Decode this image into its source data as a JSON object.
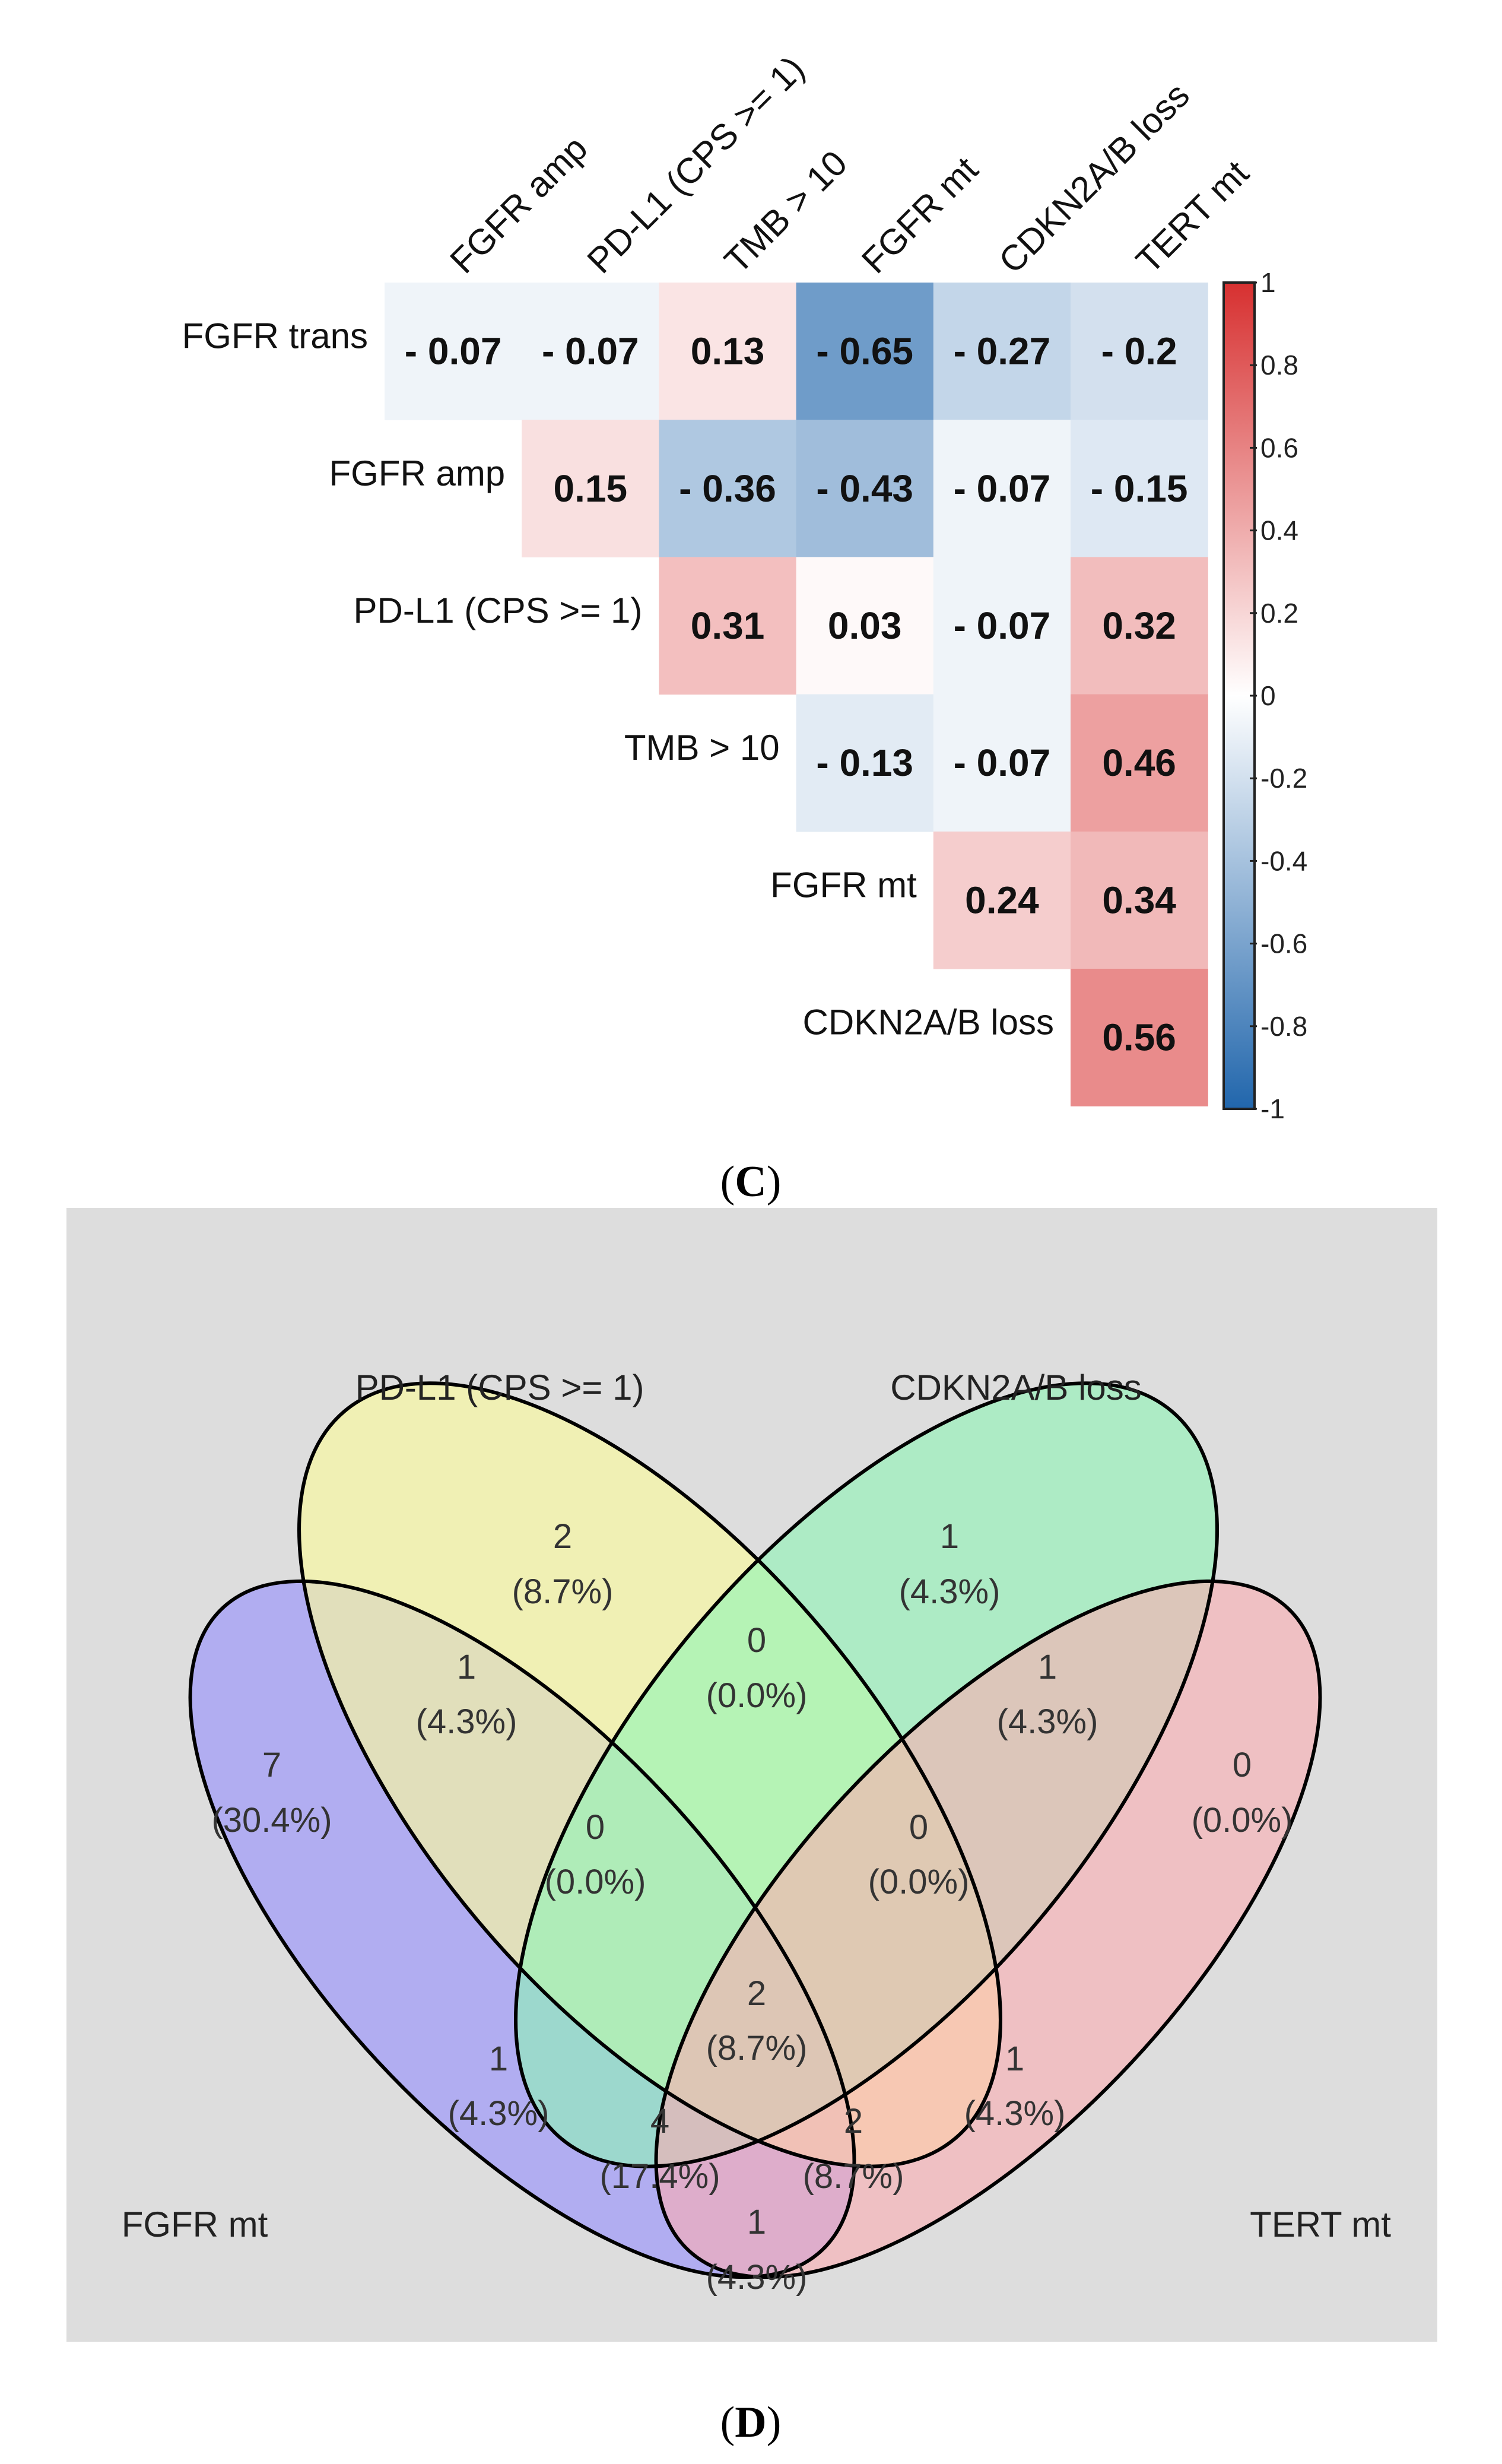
{
  "chart_data": [
    {
      "type": "heatmap",
      "panel_label": "C",
      "row_labels": [
        "FGFR trans",
        "FGFR amp",
        "PD-L1 (CPS >= 1)",
        "TMB > 10",
        "FGFR mt",
        "CDKN2A/B loss"
      ],
      "col_labels": [
        "FGFR amp",
        "PD-L1 (CPS >= 1)",
        "TMB > 10",
        "FGFR mt",
        "CDKN2A/B loss",
        "TERT mt"
      ],
      "cells": [
        {
          "row": 0,
          "col": 0,
          "value": -0.07,
          "label": "- 0.07"
        },
        {
          "row": 0,
          "col": 1,
          "value": -0.07,
          "label": "- 0.07"
        },
        {
          "row": 0,
          "col": 2,
          "value": 0.13,
          "label": "0.13"
        },
        {
          "row": 0,
          "col": 3,
          "value": -0.65,
          "label": "- 0.65"
        },
        {
          "row": 0,
          "col": 4,
          "value": -0.27,
          "label": "- 0.27"
        },
        {
          "row": 0,
          "col": 5,
          "value": -0.2,
          "label": "- 0.2"
        },
        {
          "row": 1,
          "col": 1,
          "value": 0.15,
          "label": "0.15"
        },
        {
          "row": 1,
          "col": 2,
          "value": -0.36,
          "label": "- 0.36"
        },
        {
          "row": 1,
          "col": 3,
          "value": -0.43,
          "label": "- 0.43"
        },
        {
          "row": 1,
          "col": 4,
          "value": -0.07,
          "label": "- 0.07"
        },
        {
          "row": 1,
          "col": 5,
          "value": -0.15,
          "label": "- 0.15"
        },
        {
          "row": 2,
          "col": 2,
          "value": 0.31,
          "label": "0.31"
        },
        {
          "row": 2,
          "col": 3,
          "value": 0.03,
          "label": "0.03"
        },
        {
          "row": 2,
          "col": 4,
          "value": -0.07,
          "label": "- 0.07"
        },
        {
          "row": 2,
          "col": 5,
          "value": 0.32,
          "label": "0.32"
        },
        {
          "row": 3,
          "col": 3,
          "value": -0.13,
          "label": "- 0.13"
        },
        {
          "row": 3,
          "col": 4,
          "value": -0.07,
          "label": "- 0.07"
        },
        {
          "row": 3,
          "col": 5,
          "value": 0.46,
          "label": "0.46"
        },
        {
          "row": 4,
          "col": 4,
          "value": 0.24,
          "label": "0.24"
        },
        {
          "row": 4,
          "col": 5,
          "value": 0.34,
          "label": "0.34"
        },
        {
          "row": 5,
          "col": 5,
          "value": 0.56,
          "label": "0.56"
        }
      ],
      "colorbar": {
        "range": [
          -1,
          1
        ],
        "ticks": [
          "1",
          "0.8",
          "0.6",
          "0.4",
          "0.2",
          "0",
          "-0.2",
          "-0.4",
          "-0.6",
          "-0.8",
          "-1"
        ],
        "ticks_values": [
          1,
          0.8,
          0.6,
          0.4,
          0.2,
          0,
          -0.2,
          -0.4,
          -0.6,
          -0.8,
          -1
        ],
        "color_low": "#2166ac",
        "color_mid": "#ffffff",
        "color_high": "#d73030"
      }
    },
    {
      "type": "venn",
      "panel_label": "D",
      "background": "#dddddd",
      "sets": [
        {
          "name": "FGFR mt",
          "color": "#a9a4f5"
        },
        {
          "name": "PD-L1 (CPS >= 1)",
          "color": "#fafa9e"
        },
        {
          "name": "CDKN2A/B loss",
          "color": "#8ef5b5"
        },
        {
          "name": "TERT mt",
          "color": "#fcaeb2"
        }
      ],
      "regions": [
        {
          "sets": [
            "FGFR mt"
          ],
          "count": "7",
          "percent": "(30.4%)"
        },
        {
          "sets": [
            "PD-L1 (CPS >= 1)"
          ],
          "count": "2",
          "percent": "(8.7%)"
        },
        {
          "sets": [
            "CDKN2A/B loss"
          ],
          "count": "1",
          "percent": "(4.3%)"
        },
        {
          "sets": [
            "TERT mt"
          ],
          "count": "0",
          "percent": "(0.0%)"
        },
        {
          "sets": [
            "FGFR mt",
            "PD-L1 (CPS >= 1)"
          ],
          "count": "1",
          "percent": "(4.3%)"
        },
        {
          "sets": [
            "PD-L1 (CPS >= 1)",
            "CDKN2A/B loss"
          ],
          "count": "0",
          "percent": "(0.0%)"
        },
        {
          "sets": [
            "CDKN2A/B loss",
            "TERT mt"
          ],
          "count": "1",
          "percent": "(4.3%)"
        },
        {
          "sets": [
            "FGFR mt",
            "PD-L1 (CPS >= 1)",
            "CDKN2A/B loss"
          ],
          "count": "0",
          "percent": "(0.0%)"
        },
        {
          "sets": [
            "PD-L1 (CPS >= 1)",
            "CDKN2A/B loss",
            "TERT mt"
          ],
          "count": "0",
          "percent": "(0.0%)"
        },
        {
          "sets": [
            "FGFR mt",
            "CDKN2A/B loss"
          ],
          "count": "1",
          "percent": "(4.3%)"
        },
        {
          "sets": [
            "PD-L1 (CPS >= 1)",
            "TERT mt"
          ],
          "count": "1",
          "percent": "(4.3%)"
        },
        {
          "sets": [
            "FGFR mt",
            "PD-L1 (CPS >= 1)",
            "CDKN2A/B loss",
            "TERT mt"
          ],
          "count": "2",
          "percent": "(8.7%)"
        },
        {
          "sets": [
            "FGFR mt",
            "CDKN2A/B loss",
            "TERT mt"
          ],
          "count": "4",
          "percent": "(17.4%)"
        },
        {
          "sets": [
            "FGFR mt",
            "PD-L1 (CPS >= 1)",
            "TERT mt"
          ],
          "count": "2",
          "percent": "(8.7%)"
        },
        {
          "sets": [
            "FGFR mt",
            "TERT mt"
          ],
          "count": "1",
          "percent": "(4.3%)"
        }
      ]
    }
  ]
}
